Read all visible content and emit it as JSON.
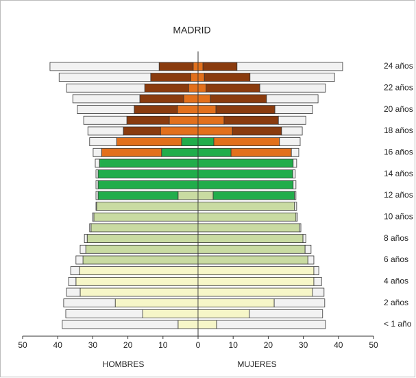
{
  "chart_data": {
    "type": "bar",
    "title": "MADRID",
    "left_label": "HOMBRES",
    "right_label": "MUJERES",
    "categories": [
      "< 1 año",
      null,
      "2 años",
      null,
      "4 años",
      null,
      "6 años",
      null,
      "8 años",
      null,
      "10 años",
      null,
      "12 años",
      null,
      "14 años",
      null,
      "16 años",
      null,
      "18 años",
      null,
      "20 años",
      null,
      "22 años",
      null,
      "24 años"
    ],
    "xlim": [
      -50,
      50
    ],
    "xticks": [
      {
        "value": -50,
        "label": "50"
      },
      {
        "value": -40,
        "label": "40"
      },
      {
        "value": -30,
        "label": "30"
      },
      {
        "value": -20,
        "label": "20"
      },
      {
        "value": -10,
        "label": "10"
      },
      0,
      10,
      20,
      30,
      40,
      50
    ],
    "series": [
      {
        "side": "left",
        "color": "#f6f6c8",
        "values": [
          5.7,
          15.8,
          23.6,
          33.6,
          34.8,
          33.8,
          null,
          null,
          null,
          null,
          null,
          null,
          null,
          null,
          null,
          null,
          null,
          null,
          null,
          null,
          null,
          null,
          null,
          null,
          null
        ]
      },
      {
        "side": "left",
        "color": "#c9dba2",
        "values": [
          null,
          null,
          null,
          null,
          null,
          null,
          32.8,
          32.0,
          31.6,
          30.5,
          29.7,
          28.9,
          5.7,
          null,
          null,
          null,
          null,
          null,
          null,
          null,
          null,
          null,
          null,
          null,
          null
        ]
      },
      {
        "side": "left",
        "color": "#21ad4b",
        "values": [
          null,
          null,
          null,
          null,
          null,
          null,
          null,
          null,
          null,
          null,
          null,
          null,
          22.8,
          28.5,
          28.5,
          28.1,
          10.4,
          4.7,
          null,
          null,
          null,
          null,
          null,
          null,
          null
        ]
      },
      {
        "side": "left",
        "color": "#e2701c",
        "values": [
          null,
          null,
          null,
          null,
          null,
          null,
          null,
          null,
          null,
          null,
          null,
          null,
          null,
          null,
          null,
          null,
          17.1,
          18.5,
          10.7,
          8.2,
          5.9,
          4.1,
          2.7,
          2.1,
          1.4
        ]
      },
      {
        "side": "left",
        "color": "#8a3b0e",
        "values": [
          null,
          null,
          null,
          null,
          null,
          null,
          null,
          null,
          null,
          null,
          null,
          null,
          null,
          null,
          null,
          null,
          null,
          null,
          10.6,
          12.1,
          12.3,
          12.5,
          12.5,
          11.4,
          9.7
        ]
      },
      {
        "side": "left",
        "color": "#f2f2f2",
        "values": [
          33.0,
          21.9,
          14.7,
          3.9,
          2.1,
          2.5,
          2.0,
          1.6,
          0.8,
          0.4,
          0.4,
          0.2,
          0.6,
          0.6,
          0.6,
          1.2,
          2.4,
          7.7,
          10.1,
          12.3,
          16.2,
          19.1,
          22.3,
          26.1,
          31.1
        ]
      },
      {
        "side": "right",
        "color": "#f6f6c8",
        "values": [
          5.3,
          14.6,
          21.7,
          32.6,
          33.0,
          33.0,
          null,
          null,
          null,
          null,
          null,
          null,
          null,
          null,
          null,
          null,
          null,
          null,
          null,
          null,
          null,
          null,
          null,
          null,
          null
        ]
      },
      {
        "side": "right",
        "color": "#c9dba2",
        "values": [
          null,
          null,
          null,
          null,
          null,
          null,
          31.3,
          30.5,
          29.9,
          28.9,
          27.9,
          27.5,
          4.3,
          null,
          null,
          null,
          null,
          null,
          null,
          null,
          null,
          null,
          null,
          null,
          null
        ]
      },
      {
        "side": "right",
        "color": "#21ad4b",
        "values": [
          null,
          null,
          null,
          null,
          null,
          null,
          null,
          null,
          null,
          null,
          null,
          null,
          23.2,
          27.1,
          27.0,
          27.1,
          9.4,
          4.5,
          null,
          null,
          null,
          null,
          null,
          null,
          null
        ]
      },
      {
        "side": "right",
        "color": "#e2701c",
        "values": [
          null,
          null,
          null,
          null,
          null,
          null,
          null,
          null,
          null,
          null,
          null,
          null,
          null,
          null,
          null,
          null,
          17.2,
          18.7,
          9.8,
          7.4,
          5.1,
          3.5,
          2.3,
          1.8,
          1.4
        ]
      },
      {
        "side": "right",
        "color": "#8a3b0e",
        "values": [
          null,
          null,
          null,
          null,
          null,
          null,
          null,
          null,
          null,
          null,
          null,
          null,
          null,
          null,
          null,
          null,
          null,
          null,
          14.0,
          15.5,
          16.8,
          16.0,
          15.3,
          13.0,
          9.7
        ]
      },
      {
        "side": "right",
        "color": "#f2f2f2",
        "values": [
          31.0,
          20.9,
          14.4,
          3.3,
          2.2,
          1.4,
          1.7,
          1.7,
          0.8,
          0.4,
          0.4,
          0.6,
          0.4,
          0.8,
          0.7,
          1.0,
          2.1,
          5.9,
          5.9,
          7.8,
          10.7,
          14.7,
          18.7,
          24.1,
          30.1
        ]
      }
    ]
  }
}
